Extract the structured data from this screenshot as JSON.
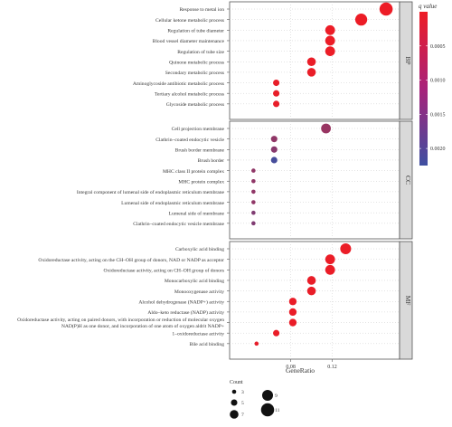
{
  "chart_data": {
    "type": "scatter",
    "xlabel": "GeneRatio",
    "xticks": [
      0.08,
      0.12
    ],
    "xlim": [
      0.021,
      0.185
    ],
    "colorbar": {
      "title": "q value",
      "ticks": [
        "0.0005",
        "0.0010",
        "0.0015",
        "0.0020"
      ],
      "tick_values": [
        0.0005,
        0.001,
        0.0015,
        0.002
      ],
      "range": [
        0.0,
        0.00225
      ],
      "low_color": "#EE1C25",
      "high_color": "#3E4FA1"
    },
    "size_legend": {
      "title": "Count",
      "values": [
        3,
        5,
        7,
        9,
        11
      ]
    },
    "panels": [
      {
        "label": "BP",
        "terms": [
          {
            "term": "Response to metal ion",
            "x": 0.172,
            "count": 11,
            "q": 1e-05
          },
          {
            "term": "Cellular ketone metabolic process",
            "x": 0.148,
            "count": 10,
            "q": 2e-05
          },
          {
            "term": "Regulation of tube diameter",
            "x": 0.118,
            "count": 8,
            "q": 3e-05
          },
          {
            "term": "Blood vessel diameter maintenance",
            "x": 0.118,
            "count": 8,
            "q": 3e-05
          },
          {
            "term": "Regulation of tube size",
            "x": 0.118,
            "count": 8,
            "q": 3e-05
          },
          {
            "term": "Quinone metabolic process",
            "x": 0.1,
            "count": 7,
            "q": 5e-05
          },
          {
            "term": "Secondary metabolic process",
            "x": 0.1,
            "count": 7,
            "q": 5e-05
          },
          {
            "term": "Aminoglycoside antibiotic metabolic process",
            "x": 0.066,
            "count": 5,
            "q": 8e-05
          },
          {
            "term": "Tertiary alcohol metabolic process",
            "x": 0.066,
            "count": 5,
            "q": 8e-05
          },
          {
            "term": "Glycoside metabolic process",
            "x": 0.066,
            "count": 5,
            "q": 8e-05
          }
        ]
      },
      {
        "label": "CC",
        "terms": [
          {
            "term": "Cell projection membrane",
            "x": 0.114,
            "count": 8,
            "q": 0.0011
          },
          {
            "term": "Clathrin–coated endocytic vesicle",
            "x": 0.064,
            "count": 5,
            "q": 0.0012
          },
          {
            "term": "Brush border membrane",
            "x": 0.064,
            "count": 5,
            "q": 0.0013
          },
          {
            "term": "Brush border",
            "x": 0.064,
            "count": 5,
            "q": 0.00215
          },
          {
            "term": "MHC class II protein complex",
            "x": 0.044,
            "count": 3,
            "q": 0.0012
          },
          {
            "term": "MHC protein complex",
            "x": 0.044,
            "count": 3,
            "q": 0.0012
          },
          {
            "term": "Integral component of lumenal side of endoplasmic reticulum membrane",
            "x": 0.044,
            "count": 3,
            "q": 0.0012
          },
          {
            "term": "Lumenal side of endoplasmic reticulum membrane",
            "x": 0.044,
            "count": 3,
            "q": 0.0012
          },
          {
            "term": "Lumenal side of membrane",
            "x": 0.044,
            "count": 3,
            "q": 0.0014
          },
          {
            "term": "Clathrin–coated endocytic vesicle membrane",
            "x": 0.044,
            "count": 3,
            "q": 0.0014
          }
        ]
      },
      {
        "label": "MF",
        "terms": [
          {
            "term": "Carboxylic acid binding",
            "x": 0.133,
            "count": 9,
            "q": 4e-05
          },
          {
            "term": "Oxidoreductase activity, acting on the CH–OH group of donors, NAD or NADP as acceptor",
            "x": 0.118,
            "count": 8,
            "q": 4e-05
          },
          {
            "term": "Oxidoreductase activity, acting on CH–OH group of donors",
            "x": 0.118,
            "count": 8,
            "q": 4e-05
          },
          {
            "term": "Monocarboxylic acid binding",
            "x": 0.1,
            "count": 7,
            "q": 6e-05
          },
          {
            "term": "Monooxygenase activity",
            "x": 0.1,
            "count": 7,
            "q": 6e-05
          },
          {
            "term": "Alcohol dehydrogenase (NADP+) activity",
            "x": 0.082,
            "count": 6,
            "q": 5e-05
          },
          {
            "term": "Aldo–keto reductase (NADP) activity",
            "x": 0.082,
            "count": 6,
            "q": 5e-05
          },
          {
            "term": "Oxidoreductase activity, acting on paired donors, with incorporation or reduction of molecular oxygen, NAD(P)H as one donor, and incorporation of one atom of oxygen aldrit NADP+",
            "x": 0.082,
            "count": 6,
            "q": 5e-05
          },
          {
            "term": "1–oxidoreductase activity",
            "x": 0.066,
            "count": 5,
            "q": 5e-05
          },
          {
            "term": "Bile acid binding",
            "x": 0.047,
            "count": 3,
            "q": 0.0001
          }
        ]
      }
    ]
  }
}
